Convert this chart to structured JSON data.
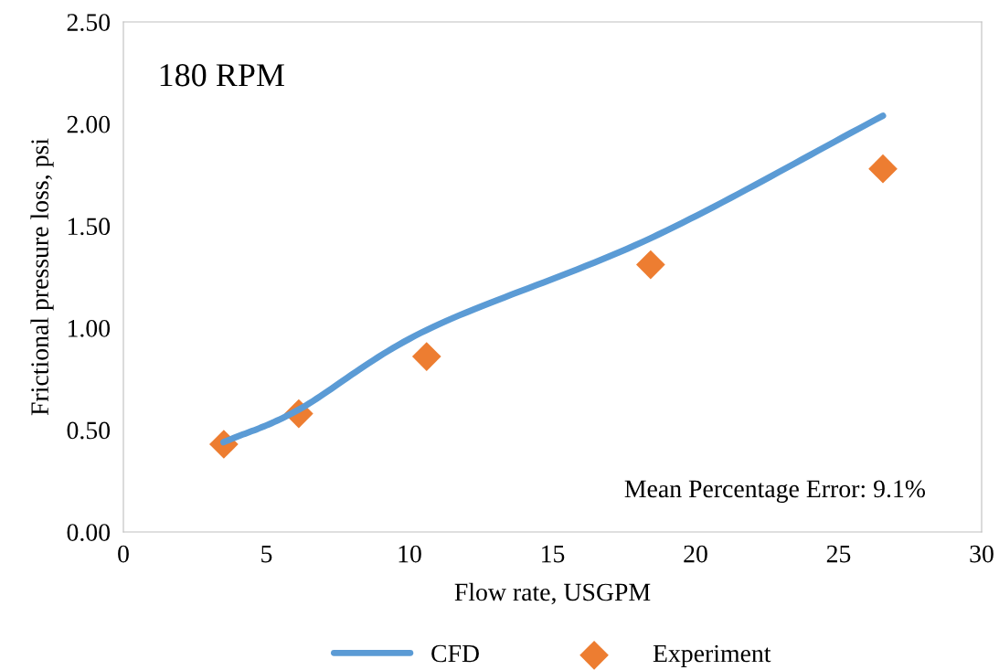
{
  "chart_data": {
    "type": "line",
    "xlabel": "Flow rate, USGPM",
    "ylabel": "Frictional pressure loss, psi",
    "xlim": [
      0,
      30
    ],
    "xticks": [
      0,
      5,
      10,
      15,
      20,
      25,
      30
    ],
    "ylim": [
      0,
      2.5
    ],
    "yticks": [
      {
        "value": 0,
        "label": "0.00"
      },
      {
        "value": 0.5,
        "label": "0.50"
      },
      {
        "value": 1,
        "label": "1.00"
      },
      {
        "value": 1.5,
        "label": "1.50"
      },
      {
        "value": 2,
        "label": "2.00"
      },
      {
        "value": 2.5,
        "label": "2.50"
      }
    ],
    "grid": false,
    "legend": "bottom",
    "annotations": [
      "180 RPM",
      "Mean Percentage Error: 9.1%"
    ],
    "series": [
      {
        "name": "CFD",
        "color": "#5b9bd5",
        "x": [
          3.5,
          6.13,
          10.6,
          18.43,
          26.55
        ],
        "values": [
          0.44,
          0.6,
          0.99,
          1.44,
          2.04
        ]
      },
      {
        "name": "Experiment",
        "type": "scatter",
        "marker": "diamond",
        "color": "#ed7d31",
        "x": [
          3.51,
          6.13,
          10.6,
          18.43,
          26.55
        ],
        "values": [
          0.43,
          0.58,
          0.86,
          1.31,
          1.78
        ]
      }
    ]
  }
}
